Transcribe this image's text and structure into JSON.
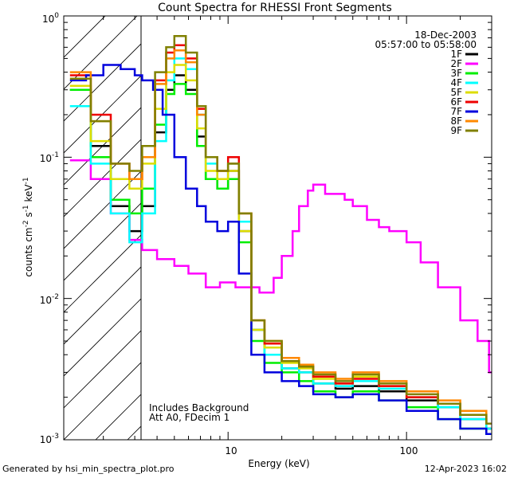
{
  "footer": {
    "generated_by": "Generated by hsi_min_spectra_plot.pro",
    "timestamp": "12-Apr-2023 16:02"
  },
  "chart_data": {
    "type": "line",
    "title": "Count Spectra for RHESSI Front Segments",
    "xlabel": "Energy (keV)",
    "ylabel": "counts cm^-2 s^-1 keV^-1",
    "xscale": "log",
    "yscale": "log",
    "xlim": [
      1.2,
      300
    ],
    "ylim": [
      0.001,
      1
    ],
    "x_tick_labels": [
      "10",
      "100"
    ],
    "y_tick_labels": [
      "10^-3",
      "10^-2",
      "10^-1",
      "10^0"
    ],
    "shaded_region": {
      "x_from": 1.2,
      "x_to": 3.0,
      "style": "diagonal-hatch",
      "boundary_x": 3.0
    },
    "date_label": "18-Dec-2003",
    "time_label": "05:57:00 to 05:58:00",
    "legend_position": "top-right",
    "annotations": [
      "Includes Background",
      "Att A0, FDecim 1"
    ],
    "series": [
      {
        "name": "1F",
        "color": "#000000",
        "x": [
          1.3,
          1.7,
          2.2,
          2.8,
          3.3,
          3.9,
          4.5,
          5.0,
          5.8,
          6.7,
          7.5,
          8.7,
          10.0,
          11.5,
          13.5,
          16,
          20,
          25,
          30,
          40,
          50,
          70,
          100,
          150,
          200,
          280
        ],
        "y": [
          0.3,
          0.12,
          0.045,
          0.03,
          0.045,
          0.15,
          0.3,
          0.38,
          0.3,
          0.14,
          0.07,
          0.06,
          0.08,
          0.03,
          0.006,
          0.0045,
          0.0032,
          0.003,
          0.0025,
          0.0023,
          0.0024,
          0.0022,
          0.0019,
          0.0017,
          0.0014,
          0.0012
        ]
      },
      {
        "name": "2F",
        "color": "#ff00ff",
        "x": [
          1.3,
          1.7,
          2.2,
          2.8,
          3.3,
          4.0,
          5.0,
          6.0,
          7.5,
          9.0,
          11,
          13,
          15,
          18,
          20,
          23,
          25,
          28,
          30,
          35,
          40,
          45,
          50,
          60,
          70,
          80,
          100,
          120,
          150,
          200,
          250,
          290
        ],
        "y": [
          0.095,
          0.07,
          0.04,
          0.026,
          0.022,
          0.019,
          0.017,
          0.015,
          0.012,
          0.013,
          0.012,
          0.012,
          0.011,
          0.014,
          0.02,
          0.03,
          0.045,
          0.058,
          0.064,
          0.055,
          0.055,
          0.05,
          0.045,
          0.036,
          0.032,
          0.03,
          0.025,
          0.018,
          0.012,
          0.007,
          0.005,
          0.003
        ]
      },
      {
        "name": "3F",
        "color": "#00ee00",
        "x": [
          1.3,
          1.7,
          2.2,
          2.8,
          3.3,
          3.9,
          4.5,
          5.0,
          5.8,
          6.7,
          7.5,
          8.7,
          10.0,
          11.5,
          13.5,
          16,
          20,
          25,
          30,
          40,
          50,
          70,
          100,
          150,
          200,
          280
        ],
        "y": [
          0.3,
          0.1,
          0.05,
          0.04,
          0.06,
          0.17,
          0.28,
          0.33,
          0.28,
          0.12,
          0.07,
          0.06,
          0.07,
          0.025,
          0.005,
          0.0035,
          0.003,
          0.0026,
          0.0022,
          0.002,
          0.0022,
          0.0019,
          0.0017,
          0.0014,
          0.0012,
          0.0011
        ]
      },
      {
        "name": "4F",
        "color": "#00ffff",
        "x": [
          1.3,
          1.7,
          2.2,
          2.8,
          3.3,
          3.9,
          4.5,
          5.0,
          5.8,
          6.7,
          7.5,
          8.7,
          10.0,
          11.5,
          13.5,
          16,
          20,
          25,
          30,
          40,
          50,
          70,
          100,
          150,
          200,
          280
        ],
        "y": [
          0.23,
          0.09,
          0.04,
          0.025,
          0.04,
          0.13,
          0.35,
          0.5,
          0.42,
          0.2,
          0.09,
          0.07,
          0.09,
          0.035,
          0.006,
          0.004,
          0.0032,
          0.003,
          0.0025,
          0.0024,
          0.0026,
          0.0023,
          0.002,
          0.0017,
          0.0014,
          0.0012
        ]
      },
      {
        "name": "5F",
        "color": "#dddd00",
        "x": [
          1.3,
          1.7,
          2.2,
          2.8,
          3.3,
          3.9,
          4.5,
          5.0,
          5.8,
          6.7,
          7.5,
          8.7,
          10.0,
          11.5,
          13.5,
          16,
          20,
          25,
          30,
          40,
          50,
          70,
          100,
          150,
          200,
          280
        ],
        "y": [
          0.32,
          0.13,
          0.07,
          0.06,
          0.09,
          0.22,
          0.4,
          0.45,
          0.35,
          0.16,
          0.08,
          0.07,
          0.08,
          0.03,
          0.006,
          0.0045,
          0.0035,
          0.0032,
          0.0027,
          0.0025,
          0.0028,
          0.0024,
          0.002,
          0.0018,
          0.0015,
          0.0013
        ]
      },
      {
        "name": "6F",
        "color": "#ee0000",
        "x": [
          1.3,
          1.7,
          2.2,
          2.8,
          3.3,
          3.9,
          4.5,
          5.0,
          5.8,
          6.7,
          7.5,
          8.7,
          10.0,
          11.5,
          13.5,
          16,
          20,
          25,
          30,
          40,
          50,
          70,
          100,
          150,
          200,
          280
        ],
        "y": [
          0.38,
          0.2,
          0.09,
          0.07,
          0.1,
          0.35,
          0.55,
          0.62,
          0.5,
          0.22,
          0.1,
          0.08,
          0.1,
          0.04,
          0.007,
          0.0048,
          0.0036,
          0.0033,
          0.0028,
          0.0025,
          0.0027,
          0.0024,
          0.002,
          0.0018,
          0.0015,
          0.0013
        ]
      },
      {
        "name": "7F",
        "color": "#0000dd",
        "x": [
          1.3,
          1.6,
          2.0,
          2.5,
          3.0,
          3.3,
          3.8,
          4.3,
          5.0,
          5.8,
          6.7,
          7.5,
          8.7,
          10.0,
          11.5,
          13.5,
          16,
          20,
          25,
          30,
          40,
          50,
          70,
          100,
          150,
          200,
          280
        ],
        "y": [
          0.35,
          0.38,
          0.45,
          0.42,
          0.38,
          0.35,
          0.3,
          0.2,
          0.1,
          0.06,
          0.045,
          0.035,
          0.03,
          0.035,
          0.015,
          0.004,
          0.003,
          0.0026,
          0.0024,
          0.0021,
          0.002,
          0.0021,
          0.0019,
          0.0016,
          0.0014,
          0.0012,
          0.0011
        ]
      },
      {
        "name": "8F",
        "color": "#ff8800",
        "x": [
          1.3,
          1.7,
          2.2,
          2.8,
          3.3,
          3.9,
          4.5,
          5.0,
          5.8,
          6.7,
          7.5,
          8.7,
          10.0,
          11.5,
          13.5,
          16,
          20,
          25,
          30,
          40,
          50,
          70,
          100,
          150,
          200,
          280
        ],
        "y": [
          0.4,
          0.18,
          0.09,
          0.07,
          0.1,
          0.33,
          0.5,
          0.57,
          0.47,
          0.2,
          0.1,
          0.08,
          0.09,
          0.04,
          0.007,
          0.005,
          0.0038,
          0.0034,
          0.003,
          0.0027,
          0.003,
          0.0026,
          0.0022,
          0.0019,
          0.0016,
          0.0013
        ]
      },
      {
        "name": "9F",
        "color": "#808000",
        "x": [
          1.3,
          1.7,
          2.2,
          2.8,
          3.3,
          3.9,
          4.5,
          5.0,
          5.8,
          6.7,
          7.5,
          8.7,
          10.0,
          11.5,
          13.5,
          16,
          20,
          25,
          30,
          40,
          50,
          70,
          100,
          150,
          200,
          280
        ],
        "y": [
          0.36,
          0.18,
          0.09,
          0.08,
          0.12,
          0.4,
          0.6,
          0.72,
          0.55,
          0.23,
          0.1,
          0.08,
          0.09,
          0.04,
          0.007,
          0.005,
          0.0036,
          0.0033,
          0.0029,
          0.0026,
          0.0029,
          0.0025,
          0.0021,
          0.0018,
          0.0015,
          0.0013
        ]
      }
    ]
  }
}
